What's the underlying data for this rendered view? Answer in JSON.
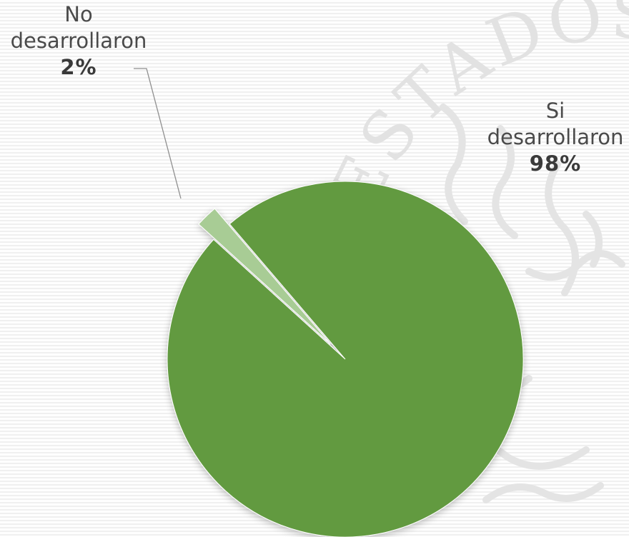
{
  "chart_data": {
    "type": "pie",
    "title": "",
    "slices": [
      {
        "label": "Si desarrollaron",
        "label_lines": [
          "Si",
          "desarrollaron"
        ],
        "value": 98,
        "value_label": "98%",
        "color": "#629a40"
      },
      {
        "label": "No desarrollaron",
        "label_lines": [
          "No",
          "desarrollaron"
        ],
        "value": 2,
        "value_label": "2%",
        "color": "#a8cc95"
      }
    ],
    "legend": "none",
    "data_labels": "outside"
  },
  "watermark": {
    "text": "ESTADOS UNIDOS",
    "color": "#dcdcdc"
  }
}
